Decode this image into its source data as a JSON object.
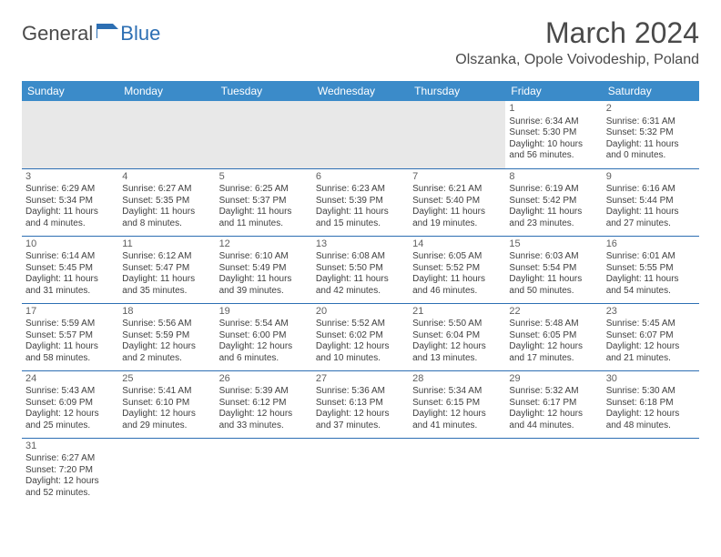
{
  "logo": {
    "general": "General",
    "blue": "Blue"
  },
  "title": "March 2024",
  "location": "Olszanka, Opole Voivodeship, Poland",
  "colors": {
    "header_bg": "#3b8bc9",
    "header_text": "#ffffff",
    "border": "#2d6fb3",
    "text": "#404040",
    "title_text": "#4a4a4a"
  },
  "typography": {
    "title_fontsize": 32,
    "location_fontsize": 16,
    "dayheader_fontsize": 12,
    "cell_fontsize": 10
  },
  "day_headers": [
    "Sunday",
    "Monday",
    "Tuesday",
    "Wednesday",
    "Thursday",
    "Friday",
    "Saturday"
  ],
  "weeks": [
    [
      null,
      null,
      null,
      null,
      null,
      {
        "n": "1",
        "sr": "Sunrise: 6:34 AM",
        "ss": "Sunset: 5:30 PM",
        "dl": "Daylight: 10 hours and 56 minutes."
      },
      {
        "n": "2",
        "sr": "Sunrise: 6:31 AM",
        "ss": "Sunset: 5:32 PM",
        "dl": "Daylight: 11 hours and 0 minutes."
      }
    ],
    [
      {
        "n": "3",
        "sr": "Sunrise: 6:29 AM",
        "ss": "Sunset: 5:34 PM",
        "dl": "Daylight: 11 hours and 4 minutes."
      },
      {
        "n": "4",
        "sr": "Sunrise: 6:27 AM",
        "ss": "Sunset: 5:35 PM",
        "dl": "Daylight: 11 hours and 8 minutes."
      },
      {
        "n": "5",
        "sr": "Sunrise: 6:25 AM",
        "ss": "Sunset: 5:37 PM",
        "dl": "Daylight: 11 hours and 11 minutes."
      },
      {
        "n": "6",
        "sr": "Sunrise: 6:23 AM",
        "ss": "Sunset: 5:39 PM",
        "dl": "Daylight: 11 hours and 15 minutes."
      },
      {
        "n": "7",
        "sr": "Sunrise: 6:21 AM",
        "ss": "Sunset: 5:40 PM",
        "dl": "Daylight: 11 hours and 19 minutes."
      },
      {
        "n": "8",
        "sr": "Sunrise: 6:19 AM",
        "ss": "Sunset: 5:42 PM",
        "dl": "Daylight: 11 hours and 23 minutes."
      },
      {
        "n": "9",
        "sr": "Sunrise: 6:16 AM",
        "ss": "Sunset: 5:44 PM",
        "dl": "Daylight: 11 hours and 27 minutes."
      }
    ],
    [
      {
        "n": "10",
        "sr": "Sunrise: 6:14 AM",
        "ss": "Sunset: 5:45 PM",
        "dl": "Daylight: 11 hours and 31 minutes."
      },
      {
        "n": "11",
        "sr": "Sunrise: 6:12 AM",
        "ss": "Sunset: 5:47 PM",
        "dl": "Daylight: 11 hours and 35 minutes."
      },
      {
        "n": "12",
        "sr": "Sunrise: 6:10 AM",
        "ss": "Sunset: 5:49 PM",
        "dl": "Daylight: 11 hours and 39 minutes."
      },
      {
        "n": "13",
        "sr": "Sunrise: 6:08 AM",
        "ss": "Sunset: 5:50 PM",
        "dl": "Daylight: 11 hours and 42 minutes."
      },
      {
        "n": "14",
        "sr": "Sunrise: 6:05 AM",
        "ss": "Sunset: 5:52 PM",
        "dl": "Daylight: 11 hours and 46 minutes."
      },
      {
        "n": "15",
        "sr": "Sunrise: 6:03 AM",
        "ss": "Sunset: 5:54 PM",
        "dl": "Daylight: 11 hours and 50 minutes."
      },
      {
        "n": "16",
        "sr": "Sunrise: 6:01 AM",
        "ss": "Sunset: 5:55 PM",
        "dl": "Daylight: 11 hours and 54 minutes."
      }
    ],
    [
      {
        "n": "17",
        "sr": "Sunrise: 5:59 AM",
        "ss": "Sunset: 5:57 PM",
        "dl": "Daylight: 11 hours and 58 minutes."
      },
      {
        "n": "18",
        "sr": "Sunrise: 5:56 AM",
        "ss": "Sunset: 5:59 PM",
        "dl": "Daylight: 12 hours and 2 minutes."
      },
      {
        "n": "19",
        "sr": "Sunrise: 5:54 AM",
        "ss": "Sunset: 6:00 PM",
        "dl": "Daylight: 12 hours and 6 minutes."
      },
      {
        "n": "20",
        "sr": "Sunrise: 5:52 AM",
        "ss": "Sunset: 6:02 PM",
        "dl": "Daylight: 12 hours and 10 minutes."
      },
      {
        "n": "21",
        "sr": "Sunrise: 5:50 AM",
        "ss": "Sunset: 6:04 PM",
        "dl": "Daylight: 12 hours and 13 minutes."
      },
      {
        "n": "22",
        "sr": "Sunrise: 5:48 AM",
        "ss": "Sunset: 6:05 PM",
        "dl": "Daylight: 12 hours and 17 minutes."
      },
      {
        "n": "23",
        "sr": "Sunrise: 5:45 AM",
        "ss": "Sunset: 6:07 PM",
        "dl": "Daylight: 12 hours and 21 minutes."
      }
    ],
    [
      {
        "n": "24",
        "sr": "Sunrise: 5:43 AM",
        "ss": "Sunset: 6:09 PM",
        "dl": "Daylight: 12 hours and 25 minutes."
      },
      {
        "n": "25",
        "sr": "Sunrise: 5:41 AM",
        "ss": "Sunset: 6:10 PM",
        "dl": "Daylight: 12 hours and 29 minutes."
      },
      {
        "n": "26",
        "sr": "Sunrise: 5:39 AM",
        "ss": "Sunset: 6:12 PM",
        "dl": "Daylight: 12 hours and 33 minutes."
      },
      {
        "n": "27",
        "sr": "Sunrise: 5:36 AM",
        "ss": "Sunset: 6:13 PM",
        "dl": "Daylight: 12 hours and 37 minutes."
      },
      {
        "n": "28",
        "sr": "Sunrise: 5:34 AM",
        "ss": "Sunset: 6:15 PM",
        "dl": "Daylight: 12 hours and 41 minutes."
      },
      {
        "n": "29",
        "sr": "Sunrise: 5:32 AM",
        "ss": "Sunset: 6:17 PM",
        "dl": "Daylight: 12 hours and 44 minutes."
      },
      {
        "n": "30",
        "sr": "Sunrise: 5:30 AM",
        "ss": "Sunset: 6:18 PM",
        "dl": "Daylight: 12 hours and 48 minutes."
      }
    ],
    [
      {
        "n": "31",
        "sr": "Sunrise: 6:27 AM",
        "ss": "Sunset: 7:20 PM",
        "dl": "Daylight: 12 hours and 52 minutes."
      },
      null,
      null,
      null,
      null,
      null,
      null
    ]
  ]
}
